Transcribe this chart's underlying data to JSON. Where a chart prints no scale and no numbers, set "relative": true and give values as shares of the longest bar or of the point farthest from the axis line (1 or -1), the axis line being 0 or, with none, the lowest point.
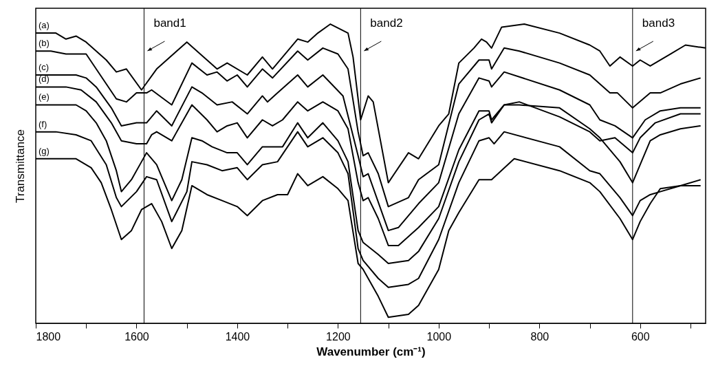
{
  "chart_data": {
    "type": "line",
    "relative": true,
    "xlabel": "Wavenumber (cm⁻¹)",
    "ylabel": "Transmittance",
    "xlim": [
      1800,
      470
    ],
    "xticks": [
      1800,
      {
        "value": 1700,
        "label": null
      },
      1600,
      {
        "value": 1500,
        "label": null
      },
      1400,
      {
        "value": 1300,
        "label": null
      },
      1200,
      {
        "value": 1100,
        "label": null
      },
      1000,
      {
        "value": 900,
        "label": null
      },
      800,
      {
        "value": 700,
        "label": null
      },
      600,
      {
        "value": 500,
        "label": null
      }
    ],
    "grid": false,
    "legend": false,
    "marker": "none",
    "line_style": "solid",
    "ref_lines": [
      {
        "axis": "x",
        "value": 1585,
        "label": "band1",
        "color": "#000000"
      },
      {
        "axis": "x",
        "value": 1155,
        "label": "band2",
        "color": "#000000"
      },
      {
        "axis": "x",
        "value": 615,
        "label": "band3",
        "color": "#000000"
      }
    ],
    "series": [
      {
        "name": "(a)",
        "color": "#000000",
        "x": [
          1800,
          1760,
          1740,
          1720,
          1700,
          1660,
          1640,
          1620,
          1590,
          1560,
          1500,
          1460,
          1440,
          1420,
          1380,
          1350,
          1330,
          1280,
          1260,
          1240,
          1215,
          1180,
          1170,
          1155,
          1140,
          1130,
          1100,
          1060,
          1040,
          1000,
          980,
          960,
          930,
          915,
          905,
          895,
          875,
          830,
          760,
          700,
          680,
          660,
          640,
          615,
          600,
          580,
          540,
          510,
          470
        ],
        "values": [
          0.97,
          0.97,
          0.95,
          0.96,
          0.94,
          0.88,
          0.84,
          0.85,
          0.78,
          0.85,
          0.94,
          0.88,
          0.85,
          0.87,
          0.83,
          0.89,
          0.85,
          0.95,
          0.94,
          0.97,
          1.0,
          0.97,
          0.89,
          0.68,
          0.76,
          0.74,
          0.47,
          0.57,
          0.55,
          0.66,
          0.7,
          0.87,
          0.92,
          0.95,
          0.94,
          0.92,
          0.99,
          1.0,
          0.97,
          0.93,
          0.91,
          0.86,
          0.89,
          0.86,
          0.88,
          0.86,
          0.9,
          0.93,
          0.92
        ]
      },
      {
        "name": "(b)",
        "color": "#000000",
        "x": [
          1800,
          1770,
          1740,
          1720,
          1700,
          1680,
          1660,
          1640,
          1620,
          1600,
          1580,
          1570,
          1530,
          1490,
          1460,
          1440,
          1420,
          1400,
          1380,
          1350,
          1330,
          1280,
          1260,
          1230,
          1200,
          1180,
          1160,
          1150,
          1140,
          1120,
          1100,
          1060,
          1040,
          1000,
          960,
          920,
          900,
          895,
          870,
          840,
          760,
          700,
          680,
          660,
          645,
          615,
          580,
          560,
          520,
          480
        ],
        "values": [
          0.91,
          0.91,
          0.9,
          0.9,
          0.9,
          0.85,
          0.8,
          0.75,
          0.74,
          0.77,
          0.77,
          0.78,
          0.73,
          0.87,
          0.83,
          0.84,
          0.81,
          0.83,
          0.79,
          0.85,
          0.82,
          0.91,
          0.88,
          0.92,
          0.9,
          0.85,
          0.64,
          0.56,
          0.57,
          0.5,
          0.39,
          0.42,
          0.48,
          0.53,
          0.8,
          0.88,
          0.88,
          0.85,
          0.92,
          0.91,
          0.87,
          0.83,
          0.8,
          0.77,
          0.77,
          0.72,
          0.77,
          0.77,
          0.8,
          0.82
        ]
      },
      {
        "name": "(c)",
        "color": "#000000",
        "x": [
          1800,
          1720,
          1700,
          1680,
          1650,
          1630,
          1600,
          1580,
          1560,
          1530,
          1490,
          1470,
          1440,
          1410,
          1380,
          1350,
          1340,
          1320,
          1280,
          1260,
          1230,
          1190,
          1160,
          1150,
          1140,
          1100,
          1080,
          1040,
          1000,
          960,
          920,
          900,
          895,
          870,
          760,
          700,
          680,
          650,
          615,
          590,
          560,
          520,
          480
        ],
        "values": [
          0.83,
          0.83,
          0.82,
          0.79,
          0.72,
          0.66,
          0.67,
          0.67,
          0.71,
          0.66,
          0.79,
          0.77,
          0.73,
          0.74,
          0.7,
          0.76,
          0.74,
          0.77,
          0.83,
          0.79,
          0.83,
          0.76,
          0.56,
          0.49,
          0.5,
          0.31,
          0.32,
          0.4,
          0.47,
          0.7,
          0.82,
          0.81,
          0.79,
          0.84,
          0.78,
          0.73,
          0.68,
          0.66,
          0.62,
          0.68,
          0.71,
          0.72,
          0.72
        ]
      },
      {
        "name": "(d)",
        "color": "#000000",
        "x": [
          1800,
          1740,
          1710,
          1680,
          1650,
          1630,
          1600,
          1580,
          1570,
          1560,
          1530,
          1500,
          1490,
          1460,
          1440,
          1420,
          1400,
          1380,
          1350,
          1330,
          1310,
          1280,
          1260,
          1230,
          1200,
          1180,
          1160,
          1150,
          1140,
          1120,
          1100,
          1080,
          1040,
          1000,
          960,
          920,
          900,
          895,
          870,
          840,
          760,
          700,
          680,
          650,
          615,
          600,
          570,
          520,
          480
        ],
        "values": [
          0.79,
          0.79,
          0.78,
          0.74,
          0.67,
          0.61,
          0.6,
          0.6,
          0.63,
          0.64,
          0.61,
          0.7,
          0.73,
          0.68,
          0.64,
          0.66,
          0.67,
          0.62,
          0.68,
          0.66,
          0.68,
          0.74,
          0.71,
          0.74,
          0.71,
          0.65,
          0.47,
          0.41,
          0.42,
          0.35,
          0.26,
          0.26,
          0.32,
          0.39,
          0.58,
          0.71,
          0.71,
          0.68,
          0.73,
          0.74,
          0.69,
          0.64,
          0.61,
          0.62,
          0.57,
          0.62,
          0.67,
          0.7,
          0.7
        ]
      },
      {
        "name": "(e)",
        "color": "#000000",
        "x": [
          1800,
          1720,
          1700,
          1680,
          1660,
          1640,
          1630,
          1610,
          1590,
          1580,
          1560,
          1530,
          1510,
          1490,
          1470,
          1450,
          1420,
          1400,
          1380,
          1350,
          1330,
          1310,
          1280,
          1260,
          1230,
          1200,
          1180,
          1160,
          1150,
          1120,
          1100,
          1060,
          1040,
          1000,
          960,
          920,
          900,
          895,
          870,
          840,
          760,
          700,
          680,
          640,
          615,
          600,
          580,
          560,
          520,
          480
        ],
        "values": [
          0.73,
          0.73,
          0.71,
          0.67,
          0.61,
          0.51,
          0.44,
          0.48,
          0.54,
          0.57,
          0.53,
          0.41,
          0.48,
          0.62,
          0.61,
          0.59,
          0.57,
          0.57,
          0.53,
          0.59,
          0.59,
          0.59,
          0.67,
          0.62,
          0.67,
          0.61,
          0.54,
          0.31,
          0.27,
          0.23,
          0.2,
          0.21,
          0.24,
          0.35,
          0.54,
          0.68,
          0.7,
          0.67,
          0.73,
          0.73,
          0.72,
          0.65,
          0.62,
          0.54,
          0.47,
          0.53,
          0.61,
          0.63,
          0.65,
          0.66
        ]
      },
      {
        "name": "(f)",
        "color": "#000000",
        "x": [
          1800,
          1760,
          1720,
          1690,
          1660,
          1640,
          1630,
          1600,
          1580,
          1560,
          1530,
          1500,
          1490,
          1460,
          1430,
          1400,
          1380,
          1350,
          1320,
          1280,
          1260,
          1230,
          1200,
          1180,
          1160,
          1150,
          1120,
          1100,
          1060,
          1040,
          1000,
          960,
          920,
          900,
          890,
          870,
          760,
          700,
          680,
          640,
          615,
          600,
          580,
          560,
          520,
          480
        ],
        "values": [
          0.64,
          0.64,
          0.63,
          0.61,
          0.53,
          0.42,
          0.39,
          0.44,
          0.49,
          0.48,
          0.34,
          0.44,
          0.54,
          0.53,
          0.51,
          0.52,
          0.48,
          0.53,
          0.54,
          0.64,
          0.59,
          0.62,
          0.57,
          0.5,
          0.25,
          0.21,
          0.15,
          0.12,
          0.13,
          0.15,
          0.28,
          0.47,
          0.61,
          0.62,
          0.6,
          0.64,
          0.59,
          0.51,
          0.5,
          0.42,
          0.36,
          0.41,
          0.43,
          0.44,
          0.46,
          0.48
        ]
      },
      {
        "name": "(g)",
        "color": "#000000",
        "x": [
          1800,
          1720,
          1690,
          1670,
          1650,
          1630,
          1610,
          1590,
          1570,
          1550,
          1530,
          1510,
          1490,
          1460,
          1430,
          1400,
          1380,
          1350,
          1320,
          1300,
          1280,
          1260,
          1230,
          1200,
          1180,
          1160,
          1150,
          1120,
          1100,
          1060,
          1040,
          1000,
          980,
          960,
          920,
          895,
          850,
          760,
          700,
          680,
          640,
          615,
          600,
          580,
          560,
          520,
          480
        ],
        "values": [
          0.55,
          0.55,
          0.52,
          0.47,
          0.38,
          0.28,
          0.31,
          0.38,
          0.4,
          0.34,
          0.25,
          0.31,
          0.46,
          0.43,
          0.41,
          0.39,
          0.36,
          0.41,
          0.43,
          0.43,
          0.5,
          0.46,
          0.49,
          0.45,
          0.41,
          0.2,
          0.18,
          0.09,
          0.02,
          0.03,
          0.06,
          0.18,
          0.31,
          0.37,
          0.48,
          0.48,
          0.55,
          0.51,
          0.47,
          0.44,
          0.35,
          0.28,
          0.34,
          0.4,
          0.45,
          0.46,
          0.46
        ]
      }
    ]
  }
}
